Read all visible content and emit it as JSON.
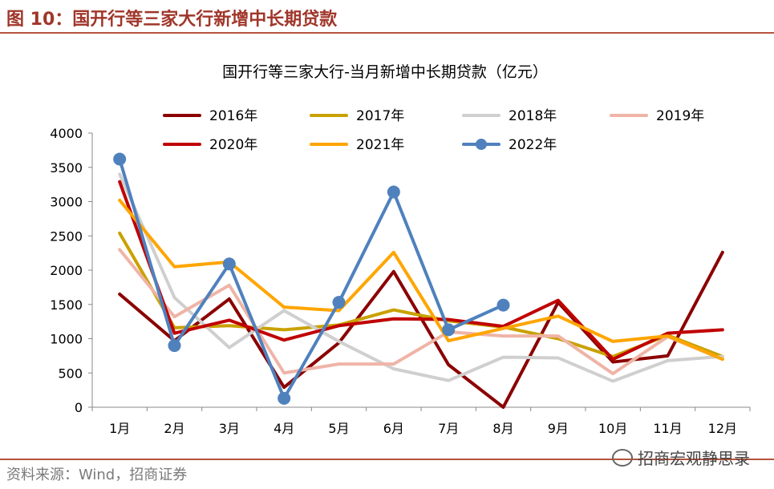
{
  "header": {
    "figure_title": "图 10：国开行等三家大行新增中长期贷款"
  },
  "footer": {
    "source": "资料来源：Wind，招商证券",
    "watermark": "招商宏观静思录"
  },
  "chart_data": {
    "type": "line",
    "title": "国开行等三家大行-当月新增中长期贷款（亿元）",
    "categories": [
      "1月",
      "2月",
      "3月",
      "4月",
      "5月",
      "6月",
      "7月",
      "8月",
      "9月",
      "10月",
      "11月",
      "12月"
    ],
    "ylim": [
      0,
      4000
    ],
    "yticks": [
      0,
      500,
      1000,
      1500,
      2000,
      2500,
      3000,
      3500,
      4000
    ],
    "grid": false,
    "legend": "top",
    "series": [
      {
        "name": "2016年",
        "color": "#8b0000",
        "marker": false,
        "values": [
          1650,
          970,
          1580,
          290,
          940,
          1980,
          620,
          0,
          1530,
          660,
          750,
          2260
        ]
      },
      {
        "name": "2017年",
        "color": "#c9a100",
        "marker": false,
        "values": [
          2540,
          1160,
          1190,
          1130,
          1200,
          1420,
          1260,
          1170,
          1000,
          740,
          1050,
          740
        ]
      },
      {
        "name": "2018年",
        "color": "#cfcfcf",
        "marker": false,
        "values": [
          3400,
          1600,
          870,
          1410,
          960,
          560,
          390,
          730,
          720,
          380,
          680,
          740
        ]
      },
      {
        "name": "2019年",
        "color": "#efb4a6",
        "marker": false,
        "values": [
          2300,
          1320,
          1780,
          500,
          630,
          630,
          1100,
          1040,
          1040,
          490,
          1030,
          700
        ]
      },
      {
        "name": "2020年",
        "color": "#c00000",
        "marker": false,
        "values": [
          3290,
          1080,
          1270,
          980,
          1190,
          1290,
          1280,
          1180,
          1560,
          700,
          1080,
          1130
        ]
      },
      {
        "name": "2021年",
        "color": "#ffa500",
        "marker": false,
        "values": [
          3020,
          2050,
          2120,
          1460,
          1410,
          2260,
          970,
          1150,
          1330,
          960,
          1040,
          700
        ]
      },
      {
        "name": "2022年",
        "color": "#4f81bd",
        "marker": true,
        "values": [
          3620,
          900,
          2090,
          130,
          1530,
          3140,
          1130,
          1490,
          null,
          null,
          null,
          null
        ]
      }
    ]
  }
}
